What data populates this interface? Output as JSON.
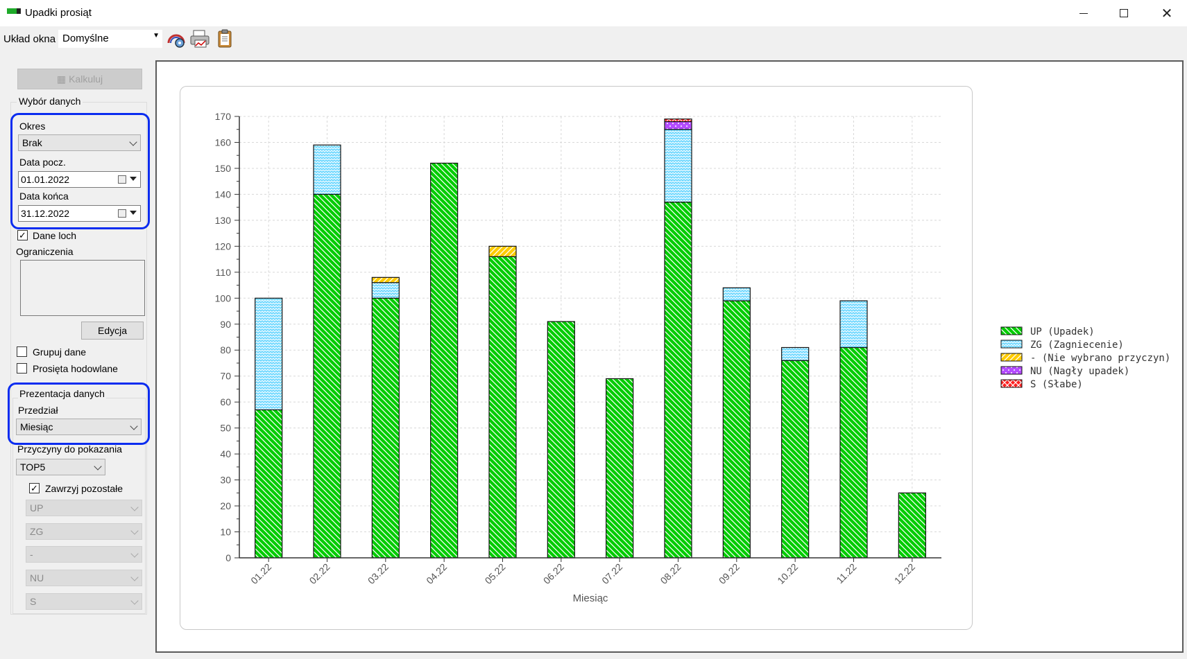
{
  "window": {
    "title": "Upadki prosiąt"
  },
  "toolbar": {
    "layout_label": "Układ okna",
    "layout_value": "Domyślne",
    "icons": [
      "chart-settings-icon",
      "print-chart-icon",
      "clipboard-icon"
    ]
  },
  "panel": {
    "calc_button": "Kalkuluj",
    "data_selection": {
      "title": "Wybór danych",
      "period_label": "Okres",
      "period_value": "Brak",
      "start_label": "Data pocz.",
      "start_value": "01.01.2022",
      "end_label": "Data końca",
      "end_value": "31.12.2022",
      "sow_data_label": "Dane loch",
      "sow_data_checked": true,
      "restrictions_label": "Ograniczenia",
      "edit_button": "Edycja",
      "group_label": "Grupuj dane",
      "group_checked": false,
      "raised_label": "Prosięta hodowlane",
      "raised_checked": false
    },
    "presentation": {
      "title": "Prezentacja danych",
      "interval_label": "Przedział",
      "interval_value": "Miesiąc",
      "causes_label": "Przyczyny do pokazania",
      "causes_value": "TOP5",
      "include_rest_label": "Zawrzyj pozostałe",
      "include_rest_checked": true,
      "cause_selects": [
        "UP",
        "ZG",
        "-",
        "NU",
        "S"
      ]
    }
  },
  "chart_data": {
    "type": "bar",
    "stacked": true,
    "xlabel": "Miesiąc",
    "ylabel": "",
    "ylim": [
      0,
      170
    ],
    "ytick_step": 10,
    "grid": true,
    "legend_position": "right",
    "categories": [
      "01.22",
      "02.22",
      "03.22",
      "04.22",
      "05.22",
      "06.22",
      "07.22",
      "08.22",
      "09.22",
      "10.22",
      "11.22",
      "12.22"
    ],
    "series": [
      {
        "name": "UP (Upadek)",
        "color": "#00cc00",
        "pattern": "diagonal-down",
        "values": [
          57,
          140,
          100,
          152,
          116,
          91,
          69,
          137,
          99,
          76,
          81,
          25
        ]
      },
      {
        "name": "ZG (Zagniecenie)",
        "color": "#6fd8ff",
        "pattern": "wave",
        "values": [
          43,
          19,
          6,
          0,
          0,
          0,
          0,
          28,
          5,
          5,
          18,
          0
        ]
      },
      {
        "name": "- (Nie wybrano przyczyn)",
        "color": "#ffcc00",
        "pattern": "diagonal-up",
        "values": [
          0,
          0,
          2,
          0,
          4,
          0,
          0,
          0,
          0,
          0,
          0,
          0
        ]
      },
      {
        "name": "NU (Nagły upadek)",
        "color": "#b44cff",
        "pattern": "dots",
        "values": [
          0,
          0,
          0,
          0,
          0,
          0,
          0,
          3,
          0,
          0,
          0,
          0
        ]
      },
      {
        "name": "S (Słabe)",
        "color": "#ff2020",
        "pattern": "cross",
        "values": [
          0,
          0,
          0,
          0,
          0,
          0,
          0,
          1,
          0,
          0,
          0,
          0
        ]
      }
    ]
  }
}
